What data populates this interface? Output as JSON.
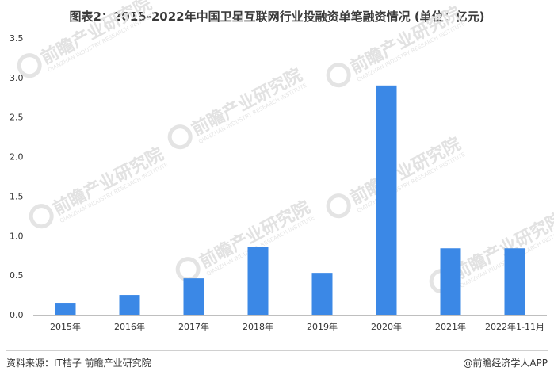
{
  "title": "图表2：2015-2022年中国卫星互联网行业投融资单笔融资情况 (单位：亿元)",
  "watermark": {
    "name": "前瞻产业研究院",
    "sub": "QIANZHAN INDUSTRY RESEARCH INSTITUTE"
  },
  "footer": {
    "source": "资料来源：IT桔子 前瞻产业研究院",
    "brand": "@前瞻经济学人APP"
  },
  "chart_data": {
    "type": "bar",
    "categories": [
      "2015年",
      "2016年",
      "2017年",
      "2018年",
      "2019年",
      "2020年",
      "2021年",
      "2022年1-11月"
    ],
    "values": [
      0.15,
      0.25,
      0.46,
      0.86,
      0.53,
      2.9,
      0.84,
      0.84
    ],
    "title": "图表2：2015-2022年中国卫星互联网行业投融资单笔融资情况 (单位：亿元)",
    "xlabel": "",
    "ylabel": "",
    "ylim": [
      0,
      3.5
    ],
    "yticks": [
      "0.0",
      "0.5",
      "1.0",
      "1.5",
      "2.0",
      "2.5",
      "3.0",
      "3.5"
    ],
    "grid": false,
    "bar_color": "#3b88e6"
  }
}
